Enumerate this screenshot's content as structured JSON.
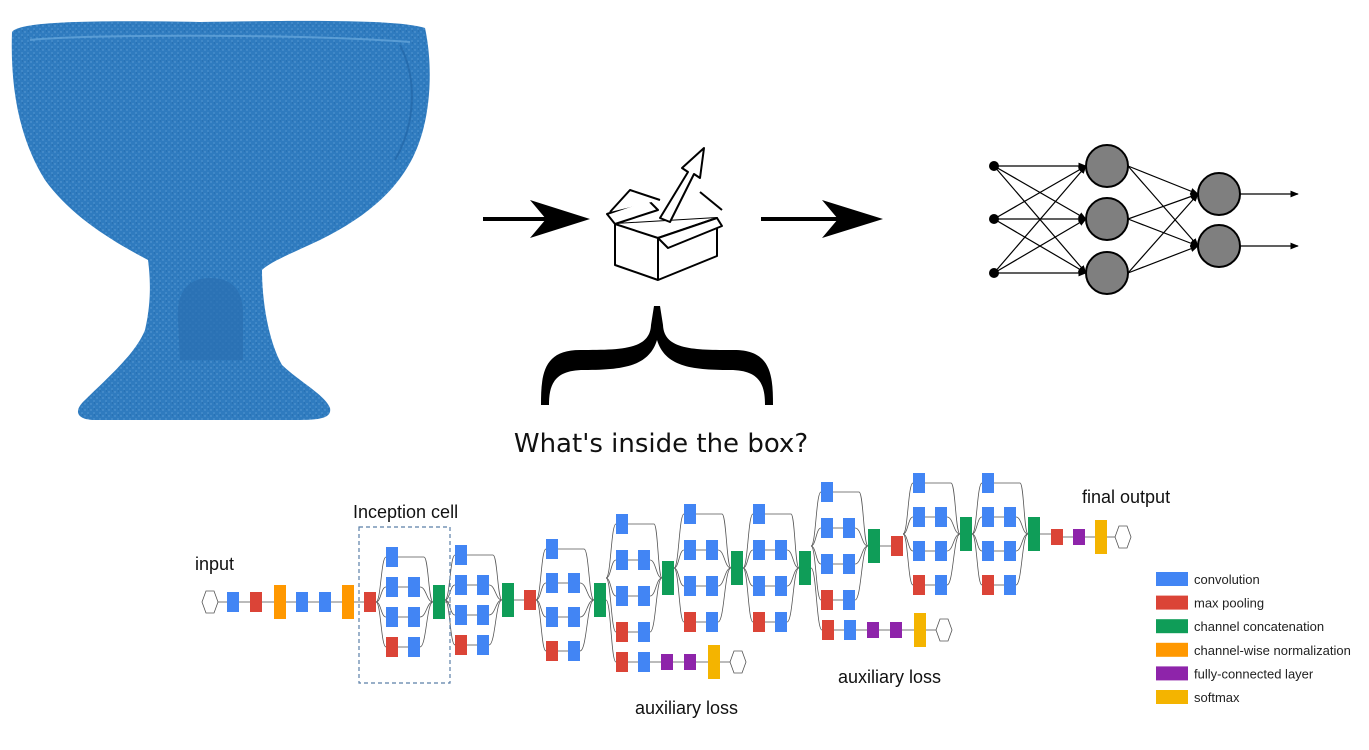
{
  "question": "What's inside the box?",
  "network_labels": {
    "input": "input",
    "inception_cell": "Inception cell",
    "final_output": "final output",
    "auxiliary_loss_1": "auxiliary loss",
    "auxiliary_loss_2": "auxiliary loss"
  },
  "legend": [
    {
      "label": "convolution",
      "color": "#4285f4"
    },
    {
      "label": "max pooling",
      "color": "#db4437"
    },
    {
      "label": "channel concatenation",
      "color": "#0f9d58"
    },
    {
      "label": "channel-wise normalization",
      "color": "#ff9800"
    },
    {
      "label": "fully-connected layer",
      "color": "#8e24aa"
    },
    {
      "label": "softmax",
      "color": "#f4b400"
    }
  ],
  "colors": {
    "point_cloud": "#2f7bbf",
    "neuron_fill": "#7f7f7f"
  },
  "icons": [
    "point-cloud-goblet",
    "arrow-right",
    "open-box-icon",
    "curly-brace",
    "neural-network-icon"
  ]
}
